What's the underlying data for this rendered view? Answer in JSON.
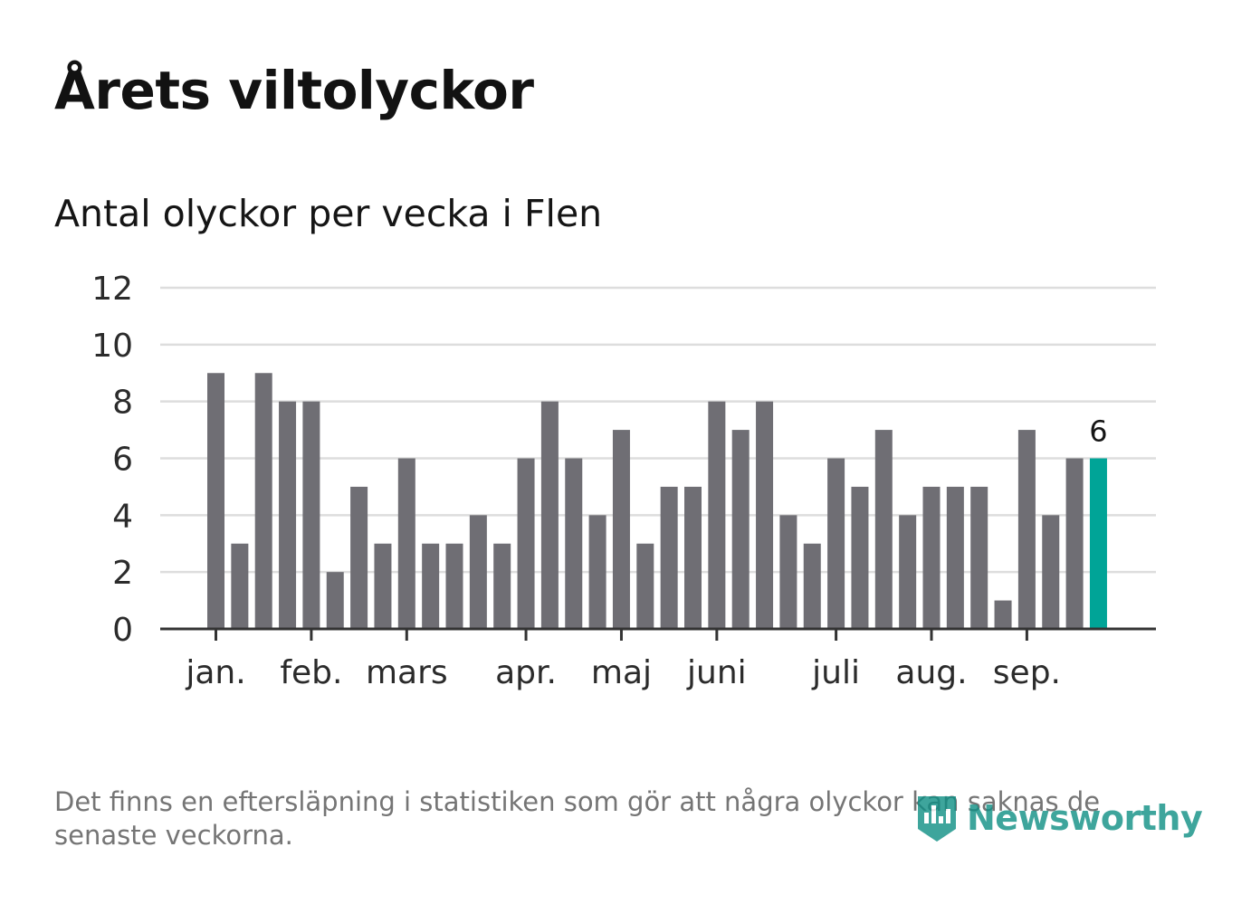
{
  "title": "Årets viltolyckor",
  "subtitle": "Antal olyckor per vecka i Flen",
  "footnote": "Det finns en eftersläpning i statistiken som gör att några olyckor kan saknas de senaste veckorna.",
  "brand": {
    "name": "Newsworthy",
    "icon": "newsworthy-logo-icon",
    "color": "#0f8f84"
  },
  "colors": {
    "bar": "#6f6e74",
    "highlight": "#00a497",
    "grid": "#dddddd",
    "axis": "#333333"
  },
  "chart_data": {
    "type": "bar",
    "title": "Antal olyckor per vecka i Flen",
    "xlabel": "",
    "ylabel": "",
    "ylim": [
      0,
      12
    ],
    "yticks": [
      0,
      2,
      4,
      6,
      8,
      10,
      12
    ],
    "grid": true,
    "values": [
      9,
      3,
      9,
      8,
      8,
      2,
      5,
      3,
      6,
      3,
      3,
      4,
      3,
      6,
      8,
      6,
      4,
      7,
      3,
      5,
      5,
      8,
      7,
      8,
      4,
      3,
      6,
      5,
      7,
      4,
      5,
      5,
      5,
      1,
      7,
      4,
      6,
      6
    ],
    "month_ticks": [
      {
        "label": "jan.",
        "bar_index": 0
      },
      {
        "label": "feb.",
        "bar_index": 4
      },
      {
        "label": "mars",
        "bar_index": 8
      },
      {
        "label": "apr.",
        "bar_index": 13
      },
      {
        "label": "maj",
        "bar_index": 17
      },
      {
        "label": "juni",
        "bar_index": 21
      },
      {
        "label": "juli",
        "bar_index": 26
      },
      {
        "label": "aug.",
        "bar_index": 30
      },
      {
        "label": "sep.",
        "bar_index": 34
      }
    ],
    "highlight_index": 37,
    "highlight_label": "6"
  }
}
